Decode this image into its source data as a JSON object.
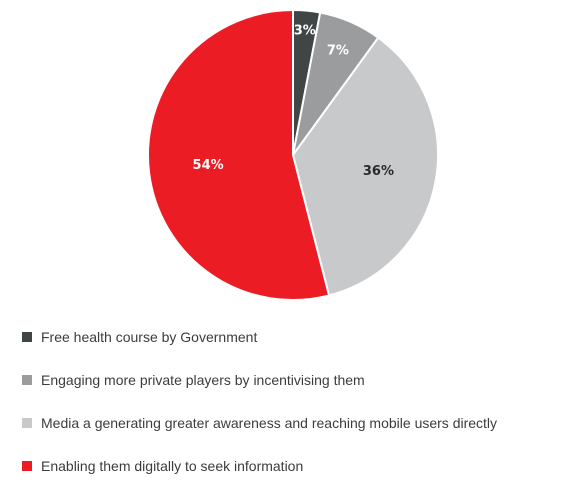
{
  "chart_data": {
    "type": "pie",
    "slices": [
      {
        "label": "Free health course by Government",
        "value": 3,
        "value_label": "3%",
        "color": "#404546",
        "label_color": "#ffffff"
      },
      {
        "label": "Engaging more private players by incentivising them",
        "value": 7,
        "value_label": "7%",
        "color": "#9a9c9e",
        "label_color": "#ffffff"
      },
      {
        "label": "Media a generating greater awareness and reaching mobile users directly",
        "value": 36,
        "value_label": "36%",
        "color": "#c8c9cb",
        "label_color": "#2a2a2a"
      },
      {
        "label": "Enabling them digitally to seek information",
        "value": 54,
        "value_label": "54%",
        "color": "#ec1c24",
        "label_color": "#ffffff"
      }
    ],
    "start_angle": "12 o'clock",
    "direction": "clockwise",
    "legend_position": "bottom-left"
  }
}
